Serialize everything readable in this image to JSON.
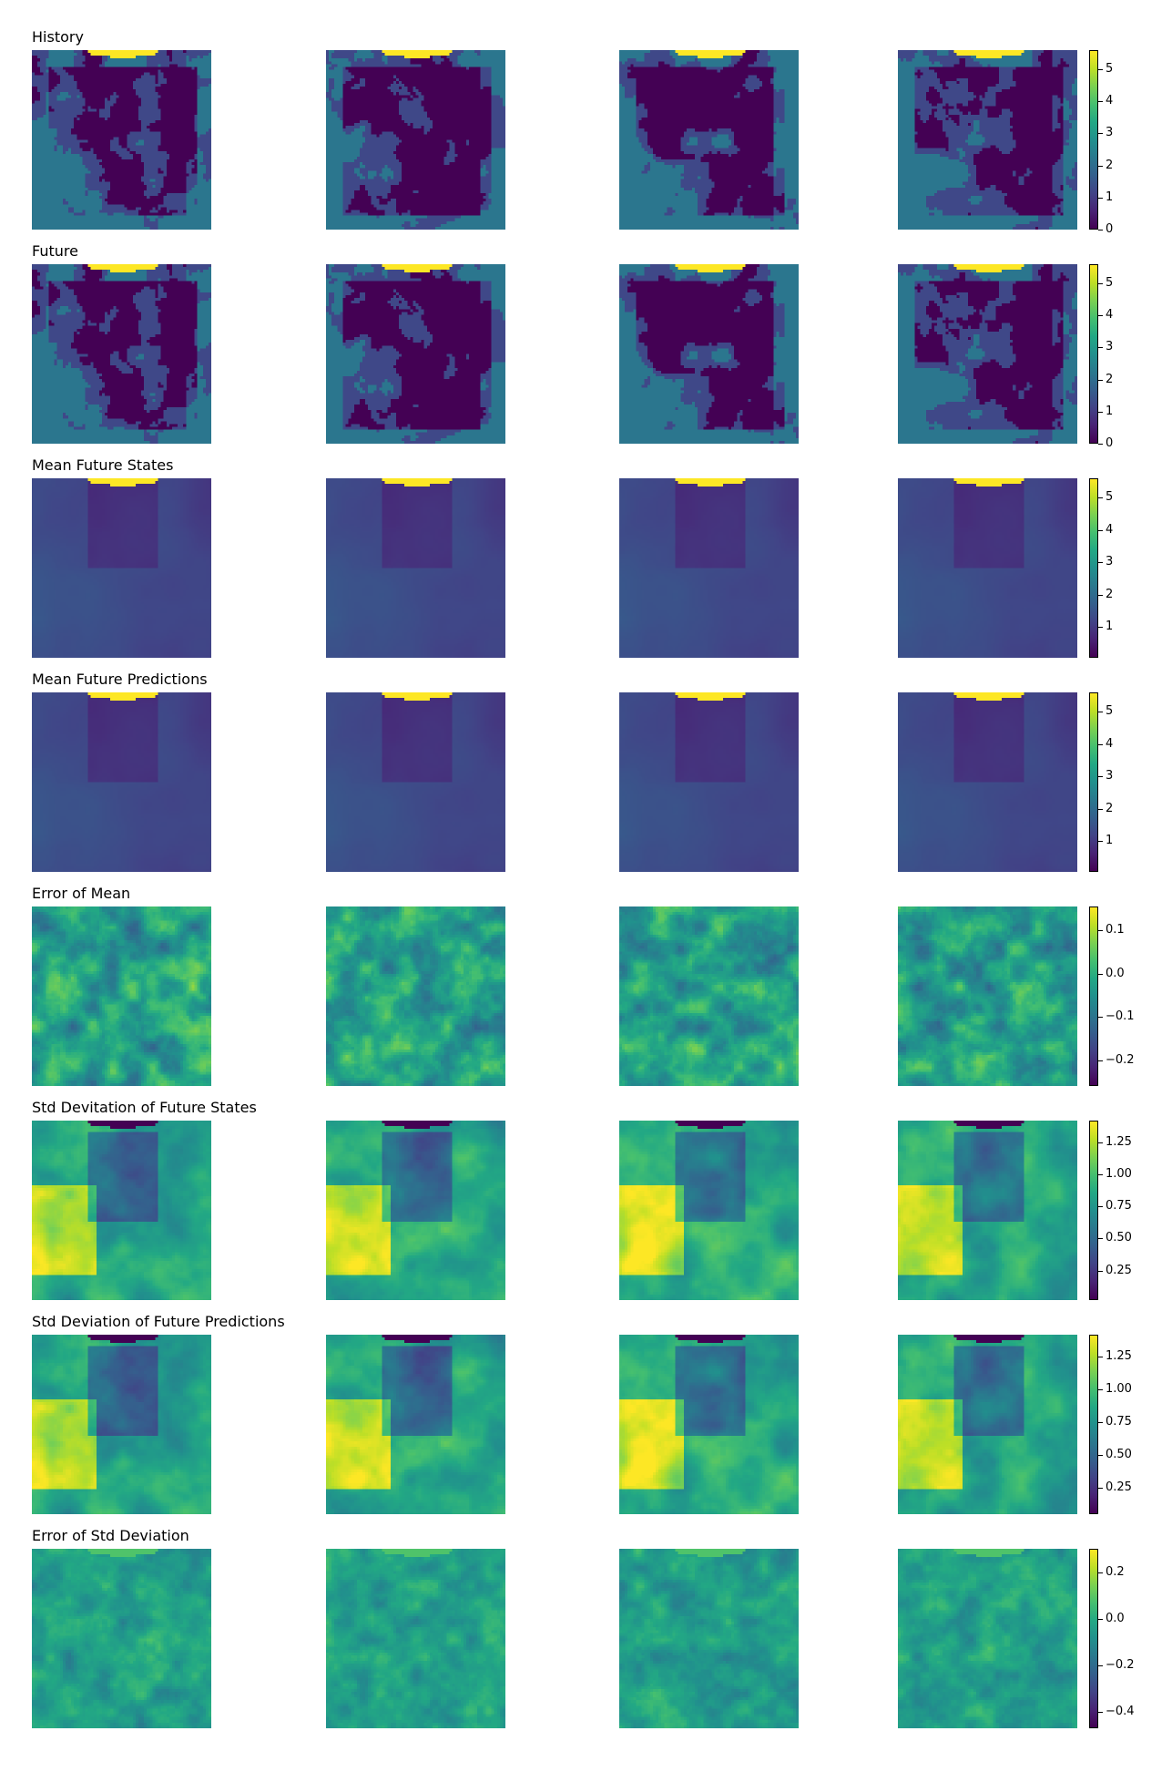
{
  "chart_data": {
    "type": "heatmap",
    "colormap": "viridis",
    "columns_per_row": 4,
    "rows": [
      {
        "title": "History",
        "kind": "discrete",
        "vmin": 0,
        "vmax": 5.6,
        "ticks": [
          "0",
          "1",
          "2",
          "3",
          "4",
          "5"
        ],
        "tick_values": [
          0,
          1,
          2,
          3,
          4,
          5
        ],
        "top_band": "high"
      },
      {
        "title": "Future",
        "kind": "discrete",
        "vmin": 0,
        "vmax": 5.6,
        "ticks": [
          "0",
          "1",
          "2",
          "3",
          "4",
          "5"
        ],
        "tick_values": [
          0,
          1,
          2,
          3,
          4,
          5
        ],
        "top_band": "high"
      },
      {
        "title": "Mean Future States",
        "kind": "mean",
        "vmin": 0.05,
        "vmax": 5.6,
        "ticks": [
          "1",
          "2",
          "3",
          "4",
          "5"
        ],
        "tick_values": [
          1,
          2,
          3,
          4,
          5
        ],
        "top_band": "high"
      },
      {
        "title": "Mean Future Predictions",
        "kind": "mean",
        "vmin": 0.05,
        "vmax": 5.6,
        "ticks": [
          "1",
          "2",
          "3",
          "4",
          "5"
        ],
        "tick_values": [
          1,
          2,
          3,
          4,
          5
        ],
        "top_band": "high"
      },
      {
        "title": "Error of Mean",
        "kind": "error",
        "vmin": -0.26,
        "vmax": 0.155,
        "ticks": [
          "0.1",
          "0.0",
          "−0.1",
          "−0.2"
        ],
        "tick_values": [
          0.1,
          0.0,
          -0.1,
          -0.2
        ],
        "top_band": "none"
      },
      {
        "title": "Std Devitation of Future States",
        "kind": "std",
        "vmin": 0.02,
        "vmax": 1.42,
        "ticks": [
          "1.25",
          "1.00",
          "0.75",
          "0.50",
          "0.25"
        ],
        "tick_values": [
          1.25,
          1.0,
          0.75,
          0.5,
          0.25
        ],
        "top_band": "low"
      },
      {
        "title": "Std Deviation of Future Predictions",
        "kind": "std",
        "vmin": 0.05,
        "vmax": 1.42,
        "ticks": [
          "1.25",
          "1.00",
          "0.75",
          "0.50",
          "0.25"
        ],
        "tick_values": [
          1.25,
          1.0,
          0.75,
          0.5,
          0.25
        ],
        "top_band": "low"
      },
      {
        "title": "Error of Std Deviation",
        "kind": "error2",
        "vmin": -0.47,
        "vmax": 0.3,
        "ticks": [
          "0.2",
          "0.0",
          "−0.2",
          "−0.4"
        ],
        "tick_values": [
          0.2,
          0.0,
          -0.2,
          -0.4
        ],
        "top_band": "mid"
      }
    ]
  }
}
